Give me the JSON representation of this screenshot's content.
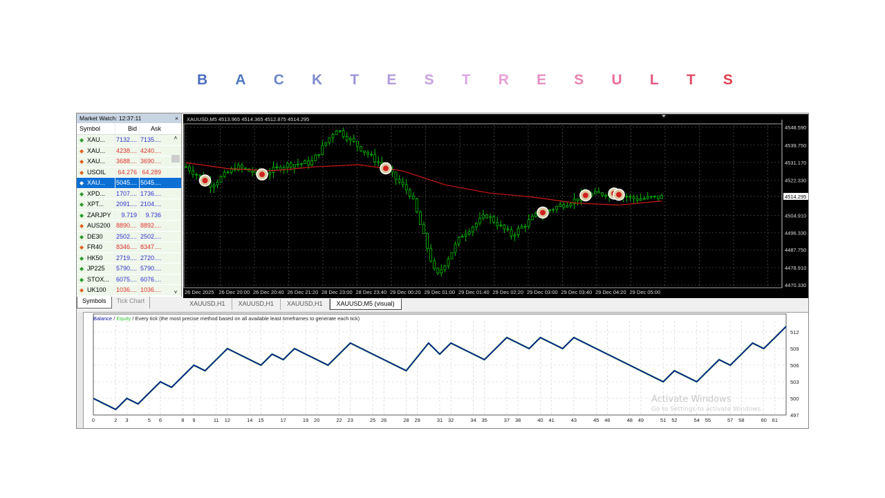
{
  "title_letters": [
    "B",
    "A",
    "C",
    "K",
    "T",
    "E",
    "S",
    "T",
    "R",
    "E",
    "S",
    "U",
    "L",
    "T",
    "S"
  ],
  "title_colors": [
    "#4a6fbf",
    "#4f79c2",
    "#6a86c8",
    "#7e8ad0",
    "#9a95d8",
    "#b39be0",
    "#c8a2e0",
    "#dba8e6",
    "#e6a0d6",
    "#e590c4",
    "#e883b0",
    "#e76d96",
    "#e35a7e",
    "#e24e69",
    "#e0404f"
  ],
  "market_watch": {
    "title": "Market Watch: 12:37:11",
    "close": "×",
    "headers": {
      "symbol": "Symbol",
      "bid": "Bid",
      "ask": "Ask"
    },
    "rows": [
      {
        "symbol": "XAU...",
        "bid": "7132....",
        "ask": "7135....",
        "dir": "up"
      },
      {
        "symbol": "XAU...",
        "bid": "4238....",
        "ask": "4240....",
        "dir": "down"
      },
      {
        "symbol": "XAU...",
        "bid": "3688....",
        "ask": "3690....",
        "dir": "down"
      },
      {
        "symbol": "USOIL",
        "bid": "64.276",
        "ask": "64.289",
        "dir": "down"
      },
      {
        "symbol": "XAU...",
        "bid": "5045....",
        "ask": "5045....",
        "dir": "up",
        "selected": true
      },
      {
        "symbol": "XPD...",
        "bid": "1707....",
        "ask": "1736....",
        "dir": "up"
      },
      {
        "symbol": "XPT...",
        "bid": "2091....",
        "ask": "2104....",
        "dir": "up"
      },
      {
        "symbol": "ZARJPY",
        "bid": "9.719",
        "ask": "9.736",
        "dir": "up"
      },
      {
        "symbol": "AUS200",
        "bid": "8890....",
        "ask": "8892....",
        "dir": "down"
      },
      {
        "symbol": "DE30",
        "bid": "2502....",
        "ask": "2502....",
        "dir": "up"
      },
      {
        "symbol": "FR40",
        "bid": "8346....",
        "ask": "8347....",
        "dir": "down"
      },
      {
        "symbol": "HK50",
        "bid": "2719....",
        "ask": "2720....",
        "dir": "up"
      },
      {
        "symbol": "JP225",
        "bid": "5790....",
        "ask": "5790....",
        "dir": "up"
      },
      {
        "symbol": "STOX...",
        "bid": "6075....",
        "ask": "6076....",
        "dir": "up"
      },
      {
        "symbol": "UK100",
        "bid": "1036....",
        "ask": "1036....",
        "dir": "down"
      }
    ],
    "tabs": [
      "Symbols",
      "Tick Chart"
    ]
  },
  "price_chart": {
    "header": "XAUUSD,M5  4513.965 4514.365 4512.875 4514.295",
    "current_price": "4514.295",
    "price_ticks": [
      "4548.590",
      "4539.750",
      "4531.170",
      "4522.330",
      "4504.910",
      "4496.330",
      "4487.750",
      "4478.910",
      "4470.330"
    ],
    "price_range": [
      4470.33,
      4548.59
    ],
    "time_labels": [
      "26 Dec 2025",
      "26 Dec 20:00",
      "26 Dec 20:40",
      "26 Dec 21:20",
      "28 Dec 23:00",
      "28 Dec 23:40",
      "29 Dec 00:20",
      "29 Dec 01:00",
      "29 Dec 01:40",
      "29 Dec 02:20",
      "29 Dec 03:00",
      "29 Dec 03:40",
      "29 Dec 04:20",
      "29 Dec 05:00"
    ],
    "price_path": [
      4529,
      4520,
      4529,
      4525,
      4530,
      4531,
      4548,
      4538,
      4528,
      4515,
      4474,
      4495,
      4505,
      4495,
      4505,
      4510,
      4515,
      4516,
      4513,
      4514
    ],
    "ma_path": [
      4531,
      4528,
      4527,
      4529,
      4530,
      4527,
      4520,
      4516,
      4514,
      4511,
      4510,
      4512
    ],
    "trade_marker_positions": [
      0.04,
      0.16,
      0.42,
      0.75,
      0.84,
      0.9,
      0.91
    ],
    "candle_up_color": "#00c000",
    "ma_color": "#d01818"
  },
  "chart_tabs": [
    "XAUUSD,H1",
    "XAUUSD,H1",
    "XAUUSD,H1",
    "XAUUSD,M5 (visual)"
  ],
  "tester_graph": {
    "legend": {
      "balance": "Balance",
      "sep1": " / ",
      "equity": "Equity",
      "rest": " / Every tick (the most precise method based on all available least timeframes to generate each tick)"
    },
    "balance_color": "#1010a0",
    "equity_color": "#30c030",
    "y_ticks": [
      "512",
      "509",
      "506",
      "503",
      "500",
      "497"
    ],
    "y_range": [
      497,
      513.5
    ],
    "x_ticks": [
      "0",
      "2",
      "3",
      "5",
      "6",
      "8",
      "9",
      "11",
      "12",
      "14",
      "15",
      "17",
      "19",
      "20",
      "22",
      "23",
      "25",
      "26",
      "28",
      "29",
      "31",
      "32",
      "34",
      "35",
      "37",
      "38",
      "40",
      "41",
      "43",
      "45",
      "46",
      "48",
      "49",
      "51",
      "52",
      "54",
      "55",
      "57",
      "58",
      "60",
      "61"
    ],
    "x_range": [
      0,
      62
    ],
    "balance": {
      "x": [
        0,
        2,
        3,
        4,
        6,
        7,
        9,
        10,
        12,
        15,
        16,
        17,
        18,
        21,
        23,
        28,
        30,
        31,
        32,
        35,
        37,
        39,
        40,
        42,
        43,
        51,
        52,
        54,
        56,
        57,
        59,
        60,
        62
      ],
      "y": [
        500,
        498,
        500,
        499,
        503,
        502,
        506,
        505,
        509,
        506,
        508,
        507,
        509,
        506,
        510,
        505,
        510,
        508,
        510,
        507,
        511,
        509,
        511,
        509,
        511,
        503,
        505,
        503,
        507,
        506,
        510,
        509,
        513
      ]
    }
  },
  "os_watermark": {
    "line1": "Activate Windows",
    "line2": "Go to Settings to activate Windows."
  }
}
